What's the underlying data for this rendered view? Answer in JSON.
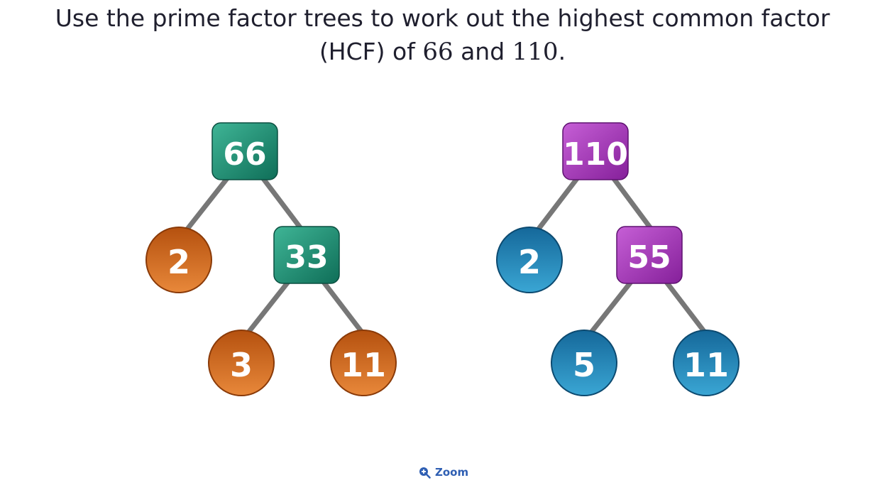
{
  "question": {
    "line1": "Use the prime factor trees to work out the highest common factor",
    "line2_before": "(HCF) of ",
    "number_a": "66",
    "line2_middle": " and ",
    "number_b": "110",
    "line2_after": "."
  },
  "trees": [
    {
      "root": "66",
      "leaf_left": "2",
      "composite": "33",
      "leaf_bottom_left": "3",
      "leaf_bottom_right": "11",
      "colors": {
        "box": "#178a6e",
        "circle": "#c9631c"
      }
    },
    {
      "root": "110",
      "leaf_left": "2",
      "composite": "55",
      "leaf_bottom_left": "5",
      "leaf_bottom_right": "11",
      "colors": {
        "box": "#a23bb5",
        "circle": "#1b7fb0"
      }
    }
  ],
  "zoom": {
    "label": "Zoom",
    "icon": "zoom-in-icon"
  }
}
